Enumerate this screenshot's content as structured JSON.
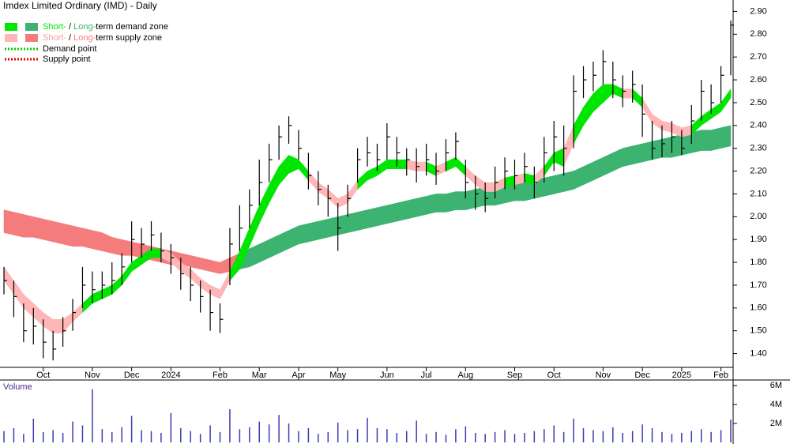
{
  "chart_data": {
    "type": "ohlc",
    "title": "Imdex Limited Ordinary (IMD) - Daily",
    "legend": [
      {
        "short": "Short-",
        "sep": " / ",
        "long": "Long-",
        "rest": "term demand zone",
        "short_color": "#00e600",
        "long_color": "#3cb371"
      },
      {
        "short": "Short-",
        "sep": " / ",
        "long": "Long-",
        "rest": "term supply zone",
        "short_color": "#ffb6b6",
        "long_color": "#f47c7c"
      },
      {
        "text": "Demand point",
        "color": "#00cc00"
      },
      {
        "text": "Supply point",
        "color": "#e00000"
      }
    ],
    "volume_label": "Volume",
    "x_labels": [
      null,
      null,
      null,
      null,
      "Oct",
      null,
      null,
      null,
      null,
      "Nov",
      null,
      null,
      null,
      "Dec",
      null,
      null,
      null,
      "2024",
      null,
      null,
      null,
      null,
      "Feb",
      null,
      null,
      null,
      "Mar",
      null,
      null,
      null,
      "Apr",
      null,
      null,
      null,
      "May",
      null,
      null,
      null,
      null,
      "Jun",
      null,
      null,
      null,
      "Jul",
      null,
      null,
      null,
      "Aug",
      null,
      null,
      null,
      null,
      "Sep",
      null,
      null,
      null,
      "Oct",
      null,
      null,
      null,
      null,
      "Nov",
      null,
      null,
      null,
      "Dec",
      null,
      null,
      null,
      "2025",
      null,
      null,
      null,
      "Feb",
      null
    ],
    "high": [
      1.78,
      1.72,
      1.62,
      1.6,
      1.55,
      1.5,
      1.56,
      1.64,
      1.78,
      1.76,
      1.76,
      1.8,
      1.84,
      1.98,
      1.95,
      1.98,
      1.93,
      1.88,
      1.82,
      1.78,
      1.72,
      1.68,
      1.62,
      1.95,
      2.05,
      2.12,
      2.25,
      2.32,
      2.4,
      2.44,
      2.38,
      2.28,
      2.2,
      2.14,
      2.06,
      2.14,
      2.3,
      2.35,
      2.32,
      2.41,
      2.35,
      2.3,
      2.3,
      2.32,
      2.28,
      2.34,
      2.37,
      2.25,
      2.18,
      2.15,
      2.22,
      2.26,
      2.25,
      2.28,
      2.22,
      2.35,
      2.42,
      2.4,
      2.62,
      2.66,
      2.68,
      2.73,
      2.68,
      2.62,
      2.64,
      2.58,
      2.42,
      2.4,
      2.42,
      2.38,
      2.49,
      2.6,
      2.58,
      2.66,
      2.86
    ],
    "low": [
      1.66,
      1.56,
      1.45,
      1.44,
      1.38,
      1.37,
      1.43,
      1.5,
      1.6,
      1.62,
      1.64,
      1.66,
      1.7,
      1.8,
      1.82,
      1.85,
      1.8,
      1.75,
      1.68,
      1.63,
      1.58,
      1.5,
      1.49,
      1.7,
      1.85,
      1.95,
      2.05,
      2.15,
      2.25,
      2.32,
      2.25,
      2.12,
      2.05,
      2.0,
      1.85,
      2.0,
      2.15,
      2.22,
      2.2,
      2.25,
      2.22,
      2.18,
      2.15,
      2.18,
      2.14,
      2.2,
      2.25,
      2.08,
      2.03,
      2.02,
      2.08,
      2.12,
      2.12,
      2.15,
      2.08,
      2.15,
      2.2,
      2.18,
      2.3,
      2.52,
      2.55,
      2.58,
      2.52,
      2.48,
      2.5,
      2.35,
      2.25,
      2.26,
      2.28,
      2.27,
      2.32,
      2.42,
      2.45,
      2.5,
      2.62
    ],
    "close": [
      1.72,
      1.65,
      1.5,
      1.52,
      1.45,
      1.42,
      1.5,
      1.58,
      1.7,
      1.68,
      1.7,
      1.72,
      1.78,
      1.9,
      1.88,
      1.92,
      1.85,
      1.82,
      1.75,
      1.7,
      1.65,
      1.58,
      1.55,
      1.88,
      1.95,
      2.05,
      2.15,
      2.25,
      2.35,
      2.4,
      2.3,
      2.18,
      2.12,
      2.08,
      1.95,
      2.08,
      2.25,
      2.28,
      2.25,
      2.35,
      2.28,
      2.25,
      2.22,
      2.25,
      2.2,
      2.28,
      2.33,
      2.15,
      2.1,
      2.08,
      2.15,
      2.2,
      2.18,
      2.22,
      2.15,
      2.28,
      2.35,
      2.3,
      2.55,
      2.6,
      2.62,
      2.68,
      2.6,
      2.55,
      2.58,
      2.45,
      2.3,
      2.32,
      2.35,
      2.3,
      2.42,
      2.55,
      2.5,
      2.62,
      2.84
    ],
    "short_zone": {
      "upper": [
        1.78,
        1.72,
        1.66,
        1.62,
        1.58,
        1.55,
        1.55,
        1.58,
        1.62,
        1.66,
        1.68,
        1.7,
        1.74,
        1.8,
        1.83,
        1.86,
        1.86,
        1.84,
        1.8,
        1.77,
        1.73,
        1.7,
        1.68,
        1.76,
        1.85,
        1.95,
        2.05,
        2.14,
        2.22,
        2.27,
        2.25,
        2.2,
        2.15,
        2.12,
        2.08,
        2.1,
        2.16,
        2.2,
        2.22,
        2.25,
        2.25,
        2.25,
        2.24,
        2.24,
        2.22,
        2.24,
        2.26,
        2.22,
        2.18,
        2.15,
        2.15,
        2.17,
        2.18,
        2.19,
        2.18,
        2.22,
        2.28,
        2.3,
        2.4,
        2.48,
        2.54,
        2.58,
        2.58,
        2.56,
        2.56,
        2.52,
        2.45,
        2.42,
        2.41,
        2.39,
        2.4,
        2.44,
        2.47,
        2.5,
        2.56
      ],
      "lower": [
        1.72,
        1.66,
        1.6,
        1.56,
        1.52,
        1.49,
        1.49,
        1.54,
        1.58,
        1.62,
        1.64,
        1.66,
        1.7,
        1.76,
        1.79,
        1.82,
        1.82,
        1.8,
        1.76,
        1.73,
        1.69,
        1.66,
        1.64,
        1.72,
        1.77,
        1.87,
        1.97,
        2.06,
        2.14,
        2.19,
        2.21,
        2.16,
        2.11,
        2.08,
        2.04,
        2.06,
        2.12,
        2.16,
        2.18,
        2.21,
        2.21,
        2.21,
        2.2,
        2.2,
        2.18,
        2.2,
        2.22,
        2.18,
        2.14,
        2.11,
        2.11,
        2.13,
        2.14,
        2.15,
        2.14,
        2.18,
        2.24,
        2.22,
        2.32,
        2.4,
        2.46,
        2.5,
        2.54,
        2.52,
        2.52,
        2.48,
        2.41,
        2.38,
        2.37,
        2.35,
        2.36,
        2.4,
        2.43,
        2.46,
        2.52
      ]
    },
    "long_zone": {
      "upper": [
        2.03,
        2.02,
        2.01,
        2.0,
        1.99,
        1.98,
        1.97,
        1.96,
        1.95,
        1.94,
        1.93,
        1.91,
        1.9,
        1.89,
        1.88,
        1.87,
        1.86,
        1.85,
        1.84,
        1.83,
        1.82,
        1.81,
        1.8,
        1.82,
        1.84,
        1.86,
        1.88,
        1.9,
        1.92,
        1.94,
        1.96,
        1.97,
        1.98,
        1.99,
        2.0,
        2.01,
        2.02,
        2.03,
        2.04,
        2.05,
        2.06,
        2.07,
        2.08,
        2.09,
        2.1,
        2.1,
        2.11,
        2.11,
        2.12,
        2.13,
        2.13,
        2.14,
        2.15,
        2.15,
        2.16,
        2.17,
        2.18,
        2.19,
        2.2,
        2.22,
        2.24,
        2.26,
        2.28,
        2.3,
        2.31,
        2.32,
        2.33,
        2.34,
        2.35,
        2.36,
        2.37,
        2.38,
        2.38,
        2.39,
        2.4
      ],
      "lower": [
        1.93,
        1.92,
        1.91,
        1.91,
        1.9,
        1.89,
        1.88,
        1.87,
        1.87,
        1.86,
        1.85,
        1.84,
        1.83,
        1.83,
        1.82,
        1.81,
        1.8,
        1.79,
        1.79,
        1.78,
        1.77,
        1.76,
        1.75,
        1.76,
        1.77,
        1.78,
        1.8,
        1.82,
        1.84,
        1.86,
        1.88,
        1.89,
        1.9,
        1.91,
        1.92,
        1.93,
        1.94,
        1.95,
        1.96,
        1.97,
        1.98,
        1.99,
        2.0,
        2.01,
        2.02,
        2.02,
        2.03,
        2.03,
        2.04,
        2.05,
        2.05,
        2.06,
        2.07,
        2.07,
        2.08,
        2.09,
        2.1,
        2.11,
        2.12,
        2.14,
        2.16,
        2.18,
        2.2,
        2.22,
        2.23,
        2.24,
        2.25,
        2.26,
        2.26,
        2.27,
        2.28,
        2.29,
        2.29,
        2.3,
        2.31
      ]
    },
    "volume": [
      1200000,
      1500000,
      900000,
      2500000,
      1100000,
      1300000,
      1000000,
      2200000,
      1800000,
      5600000,
      1400000,
      1100000,
      1600000,
      2800000,
      1300000,
      1200000,
      1000000,
      3100000,
      1500000,
      1200000,
      900000,
      1800000,
      1100000,
      3500000,
      1400000,
      1600000,
      2200000,
      1900000,
      2900000,
      2000000,
      1200000,
      1500000,
      900000,
      1100000,
      2100000,
      1300000,
      1400000,
      2600000,
      1500000,
      1400000,
      1000000,
      1200000,
      2300000,
      900000,
      1100000,
      800000,
      1400000,
      1700000,
      1000000,
      900000,
      1100000,
      1300000,
      900000,
      1000000,
      1200000,
      1400000,
      1800000,
      1100000,
      2500000,
      1500000,
      1300000,
      1200000,
      1600000,
      1000000,
      1200000,
      1900000,
      1500000,
      1100000,
      900000,
      1000000,
      1200000,
      1400000,
      1100000,
      1300000,
      2400000
    ],
    "ylim": [
      1.35,
      2.95
    ],
    "yticks": [
      {
        "value": 1.4,
        "label": "1.40"
      },
      {
        "value": 1.5,
        "label": "1.50"
      },
      {
        "value": 1.6,
        "label": "1.60"
      },
      {
        "value": 1.7,
        "label": "1.70"
      },
      {
        "value": 1.8,
        "label": "1.80"
      },
      {
        "value": 1.9,
        "label": "1.90"
      },
      {
        "value": 2.0,
        "label": "2.00"
      },
      {
        "value": 2.1,
        "label": "2.10"
      },
      {
        "value": 2.2,
        "label": "2.20"
      },
      {
        "value": 2.3,
        "label": "2.30"
      },
      {
        "value": 2.4,
        "label": "2.40"
      },
      {
        "value": 2.5,
        "label": "2.50"
      },
      {
        "value": 2.6,
        "label": "2.60"
      },
      {
        "value": 2.7,
        "label": "2.70"
      },
      {
        "value": 2.8,
        "label": "2.80"
      },
      {
        "value": 2.9,
        "label": "2.90"
      }
    ],
    "volume_lim": [
      0,
      6500000
    ],
    "volume_ticks": [
      {
        "value": 2000000,
        "label": "2M"
      },
      {
        "value": 4000000,
        "label": "4M"
      },
      {
        "value": 6000000,
        "label": "6M"
      }
    ],
    "bar_color": "#000000",
    "volume_color": "#3b3bb3"
  }
}
